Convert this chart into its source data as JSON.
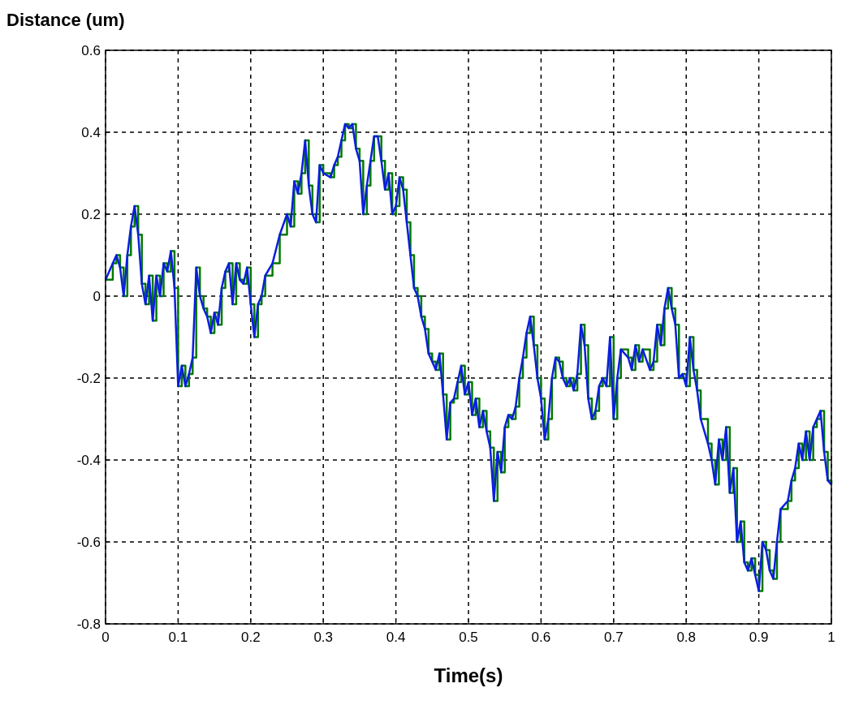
{
  "chart_data": {
    "type": "line",
    "xlabel": "Time(s)",
    "ylabel": "Distance (um)",
    "xlim": [
      0,
      1
    ],
    "ylim": [
      -0.8,
      0.6
    ],
    "xticks": [
      0,
      0.1,
      0.2,
      0.3,
      0.4,
      0.5,
      0.6,
      0.7,
      0.8,
      0.9,
      1
    ],
    "yticks": [
      -0.8,
      -0.6,
      -0.4,
      -0.2,
      0,
      0.2,
      0.4,
      0.6
    ],
    "grid": true,
    "line_style": "solid",
    "x": [
      0,
      0.01,
      0.015,
      0.02,
      0.025,
      0.03,
      0.035,
      0.04,
      0.045,
      0.05,
      0.055,
      0.06,
      0.065,
      0.07,
      0.075,
      0.08,
      0.085,
      0.09,
      0.095,
      0.1,
      0.105,
      0.11,
      0.115,
      0.12,
      0.125,
      0.13,
      0.135,
      0.14,
      0.145,
      0.15,
      0.155,
      0.16,
      0.165,
      0.17,
      0.175,
      0.18,
      0.185,
      0.19,
      0.195,
      0.2,
      0.205,
      0.21,
      0.215,
      0.22,
      0.23,
      0.24,
      0.25,
      0.255,
      0.26,
      0.265,
      0.27,
      0.275,
      0.28,
      0.285,
      0.29,
      0.295,
      0.3,
      0.31,
      0.315,
      0.32,
      0.325,
      0.33,
      0.335,
      0.34,
      0.345,
      0.35,
      0.355,
      0.36,
      0.365,
      0.37,
      0.375,
      0.38,
      0.385,
      0.39,
      0.395,
      0.4,
      0.405,
      0.41,
      0.415,
      0.42,
      0.425,
      0.43,
      0.435,
      0.44,
      0.445,
      0.45,
      0.455,
      0.46,
      0.465,
      0.47,
      0.475,
      0.48,
      0.485,
      0.49,
      0.495,
      0.5,
      0.505,
      0.51,
      0.515,
      0.52,
      0.525,
      0.53,
      0.535,
      0.54,
      0.545,
      0.55,
      0.555,
      0.56,
      0.565,
      0.57,
      0.575,
      0.58,
      0.585,
      0.59,
      0.595,
      0.6,
      0.605,
      0.61,
      0.615,
      0.62,
      0.625,
      0.63,
      0.635,
      0.64,
      0.645,
      0.65,
      0.655,
      0.66,
      0.665,
      0.67,
      0.675,
      0.68,
      0.685,
      0.69,
      0.695,
      0.7,
      0.705,
      0.71,
      0.72,
      0.725,
      0.73,
      0.735,
      0.74,
      0.75,
      0.755,
      0.76,
      0.765,
      0.77,
      0.775,
      0.78,
      0.785,
      0.79,
      0.795,
      0.8,
      0.805,
      0.81,
      0.815,
      0.82,
      0.83,
      0.835,
      0.84,
      0.845,
      0.85,
      0.855,
      0.86,
      0.865,
      0.87,
      0.875,
      0.88,
      0.885,
      0.89,
      0.895,
      0.9,
      0.905,
      0.91,
      0.915,
      0.92,
      0.925,
      0.93,
      0.94,
      0.945,
      0.95,
      0.955,
      0.96,
      0.965,
      0.97,
      0.975,
      0.98,
      0.985,
      0.99,
      0.995,
      1
    ],
    "series": [
      {
        "type": "step",
        "color": "#007a00",
        "values": [
          0.04,
          0.08,
          0.1,
          0.07,
          0,
          0.1,
          0.17,
          0.22,
          0.15,
          0.03,
          -0.02,
          0.05,
          -0.06,
          0.05,
          0,
          0.08,
          0.06,
          0.11,
          0.02,
          -0.22,
          -0.17,
          -0.22,
          -0.19,
          -0.15,
          0.07,
          0,
          -0.03,
          -0.05,
          -0.09,
          -0.04,
          -0.07,
          0.02,
          0.06,
          0.08,
          -0.02,
          0.08,
          0.04,
          0.03,
          0.07,
          -0.02,
          -0.1,
          -0.02,
          0,
          0.05,
          0.08,
          0.15,
          0.2,
          0.17,
          0.28,
          0.25,
          0.3,
          0.38,
          0.27,
          0.2,
          0.18,
          0.32,
          0.3,
          0.29,
          0.32,
          0.34,
          0.38,
          0.42,
          0.41,
          0.42,
          0.36,
          0.33,
          0.2,
          0.27,
          0.33,
          0.39,
          0.39,
          0.33,
          0.26,
          0.3,
          0.2,
          0.22,
          0.29,
          0.26,
          0.18,
          0.1,
          0.02,
          0,
          -0.05,
          -0.08,
          -0.14,
          -0.16,
          -0.18,
          -0.14,
          -0.24,
          -0.35,
          -0.26,
          -0.25,
          -0.21,
          -0.17,
          -0.24,
          -0.21,
          -0.29,
          -0.25,
          -0.32,
          -0.28,
          -0.33,
          -0.37,
          -0.5,
          -0.38,
          -0.43,
          -0.32,
          -0.29,
          -0.3,
          -0.27,
          -0.2,
          -0.15,
          -0.09,
          -0.05,
          -0.12,
          -0.2,
          -0.25,
          -0.35,
          -0.3,
          -0.2,
          -0.15,
          -0.16,
          -0.2,
          -0.22,
          -0.2,
          -0.23,
          -0.19,
          -0.07,
          -0.12,
          -0.25,
          -0.3,
          -0.28,
          -0.22,
          -0.2,
          -0.22,
          -0.1,
          -0.3,
          -0.2,
          -0.13,
          -0.15,
          -0.18,
          -0.12,
          -0.16,
          -0.13,
          -0.18,
          -0.16,
          -0.07,
          -0.12,
          -0.03,
          0.02,
          -0.03,
          -0.07,
          -0.2,
          -0.19,
          -0.22,
          -0.1,
          -0.18,
          -0.23,
          -0.3,
          -0.36,
          -0.4,
          -0.46,
          -0.35,
          -0.4,
          -0.32,
          -0.48,
          -0.42,
          -0.6,
          -0.55,
          -0.65,
          -0.67,
          -0.64,
          -0.68,
          -0.72,
          -0.6,
          -0.62,
          -0.67,
          -0.69,
          -0.6,
          -0.52,
          -0.5,
          -0.45,
          -0.42,
          -0.36,
          -0.4,
          -0.33,
          -0.4,
          -0.32,
          -0.3,
          -0.28,
          -0.38,
          -0.45,
          -0.46
        ]
      },
      {
        "color": "#0a1ee0",
        "values": [
          0.04,
          0.08,
          0.1,
          0.07,
          0,
          0.1,
          0.17,
          0.22,
          0.15,
          0.03,
          -0.02,
          0.05,
          -0.06,
          0.05,
          0,
          0.08,
          0.06,
          0.11,
          0.02,
          -0.22,
          -0.17,
          -0.22,
          -0.19,
          -0.15,
          0.07,
          0,
          -0.03,
          -0.05,
          -0.09,
          -0.04,
          -0.07,
          0.02,
          0.06,
          0.08,
          -0.02,
          0.08,
          0.04,
          0.03,
          0.07,
          -0.02,
          -0.1,
          -0.02,
          0,
          0.05,
          0.08,
          0.15,
          0.2,
          0.17,
          0.28,
          0.25,
          0.3,
          0.38,
          0.27,
          0.2,
          0.18,
          0.32,
          0.3,
          0.29,
          0.32,
          0.34,
          0.38,
          0.42,
          0.41,
          0.42,
          0.36,
          0.33,
          0.2,
          0.27,
          0.33,
          0.39,
          0.39,
          0.33,
          0.26,
          0.3,
          0.2,
          0.22,
          0.29,
          0.26,
          0.18,
          0.1,
          0.02,
          0,
          -0.05,
          -0.08,
          -0.14,
          -0.16,
          -0.18,
          -0.14,
          -0.24,
          -0.35,
          -0.26,
          -0.25,
          -0.21,
          -0.17,
          -0.24,
          -0.21,
          -0.29,
          -0.25,
          -0.32,
          -0.28,
          -0.33,
          -0.37,
          -0.5,
          -0.38,
          -0.43,
          -0.32,
          -0.29,
          -0.3,
          -0.27,
          -0.2,
          -0.15,
          -0.09,
          -0.05,
          -0.12,
          -0.2,
          -0.25,
          -0.35,
          -0.3,
          -0.2,
          -0.15,
          -0.16,
          -0.2,
          -0.22,
          -0.2,
          -0.23,
          -0.19,
          -0.07,
          -0.12,
          -0.25,
          -0.3,
          -0.28,
          -0.22,
          -0.2,
          -0.22,
          -0.1,
          -0.3,
          -0.2,
          -0.13,
          -0.15,
          -0.18,
          -0.12,
          -0.16,
          -0.13,
          -0.18,
          -0.16,
          -0.07,
          -0.12,
          -0.03,
          0.02,
          -0.03,
          -0.07,
          -0.2,
          -0.19,
          -0.22,
          -0.1,
          -0.18,
          -0.23,
          -0.3,
          -0.36,
          -0.4,
          -0.46,
          -0.35,
          -0.4,
          -0.32,
          -0.48,
          -0.42,
          -0.6,
          -0.55,
          -0.65,
          -0.67,
          -0.64,
          -0.68,
          -0.72,
          -0.6,
          -0.62,
          -0.67,
          -0.69,
          -0.6,
          -0.52,
          -0.5,
          -0.45,
          -0.42,
          -0.36,
          -0.4,
          -0.33,
          -0.4,
          -0.32,
          -0.3,
          -0.28,
          -0.38,
          -0.45,
          -0.46
        ]
      }
    ]
  }
}
